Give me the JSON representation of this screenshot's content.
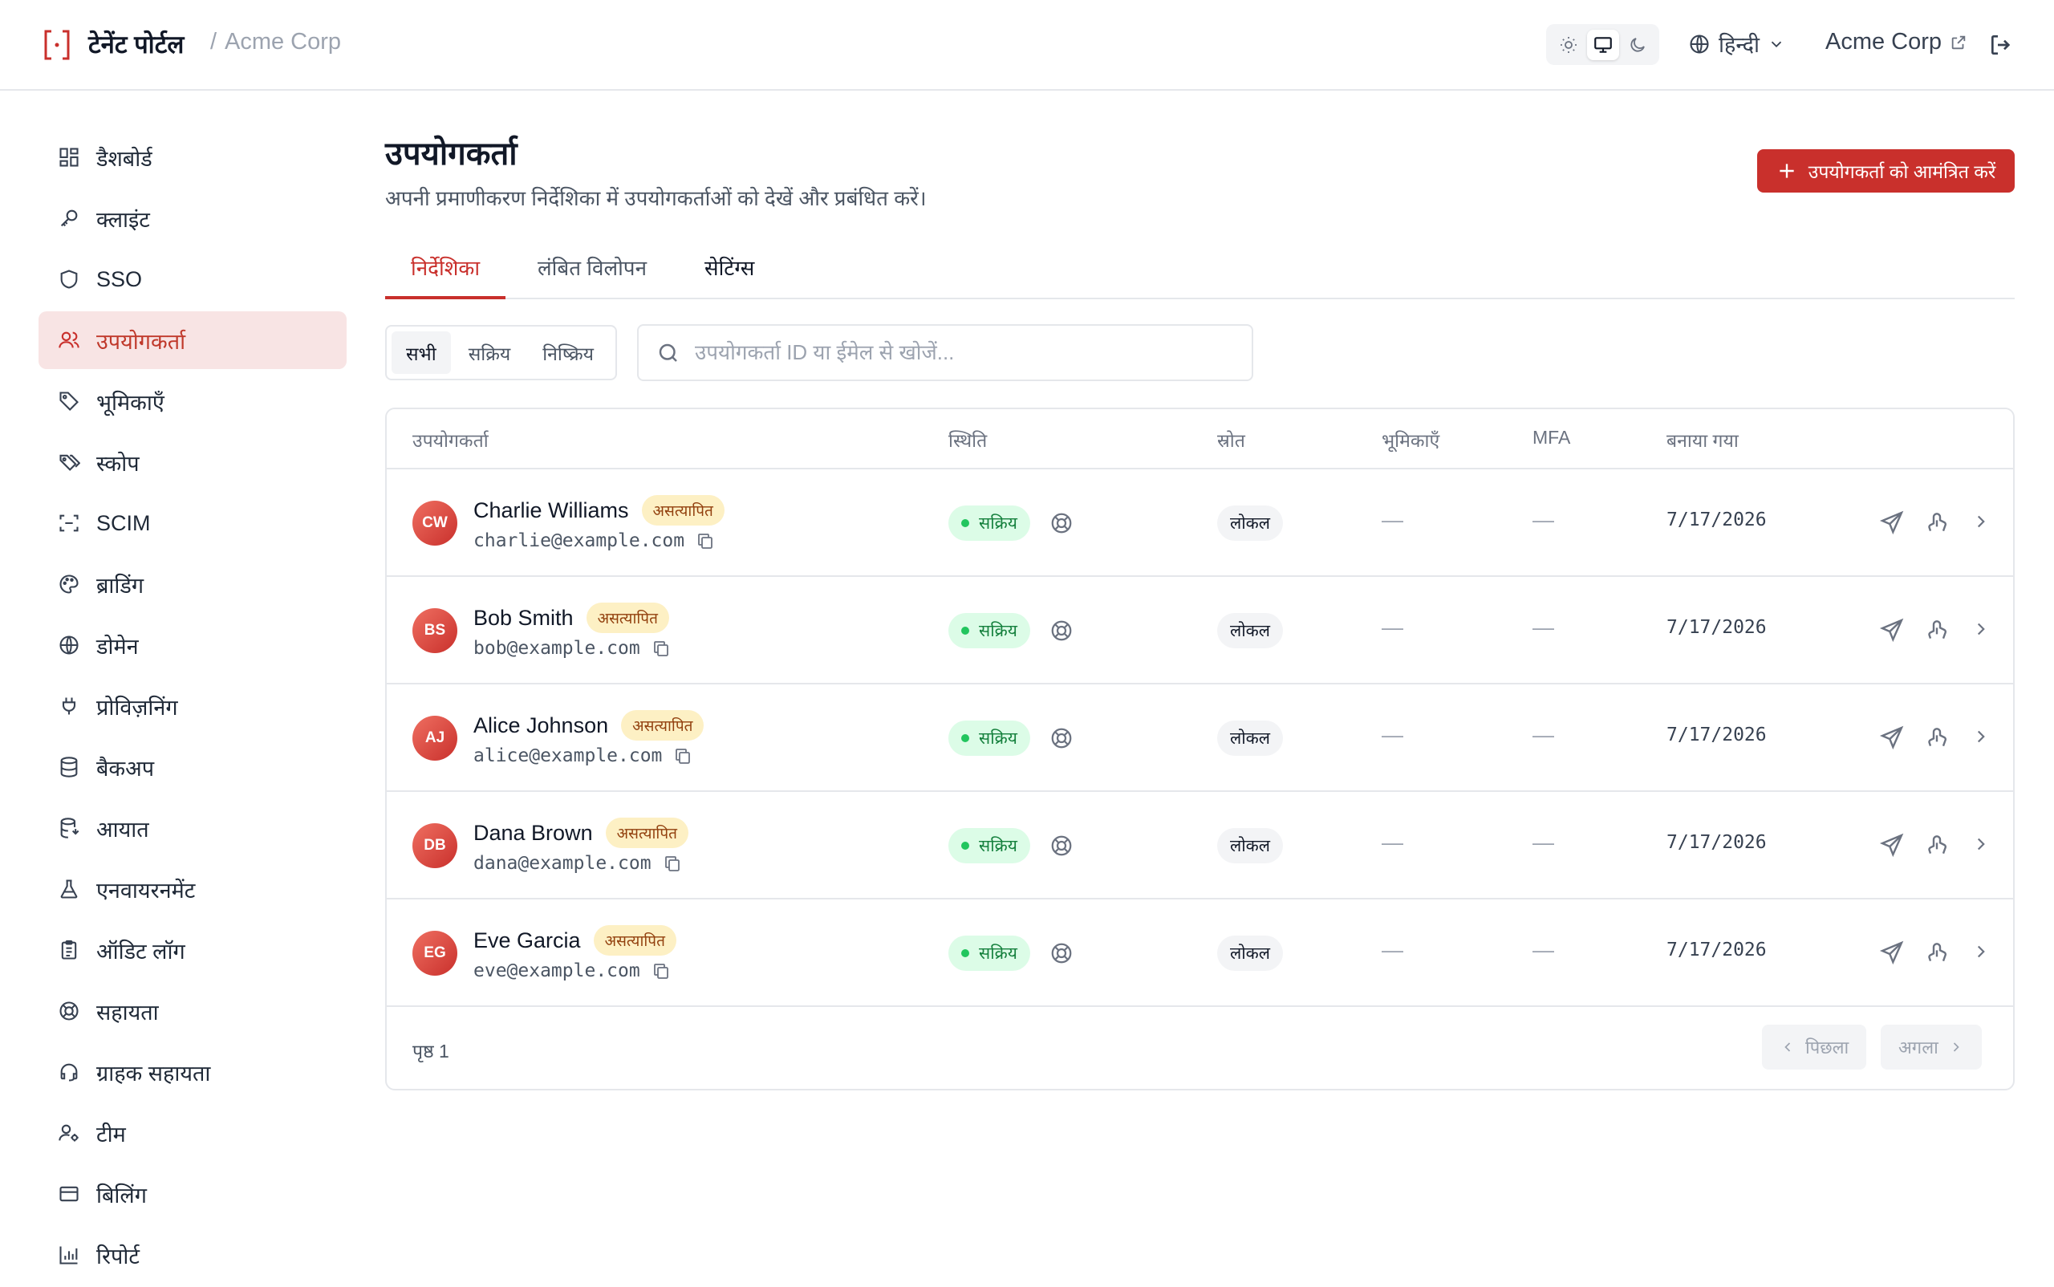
{
  "header": {
    "brand": "टेनेंट पोर्टल",
    "crumb_sep": "/",
    "crumb_org": "Acme Corp",
    "language": "हिन्दी",
    "org_link": "Acme Corp",
    "theme_options": [
      "sun-icon",
      "monitor-icon",
      "moon-icon"
    ],
    "theme_selected": "monitor-icon"
  },
  "sidebar": {
    "items": [
      {
        "label": "डैशबोर्ड",
        "icon": "dashboard-icon"
      },
      {
        "label": "क्लाइंट",
        "icon": "key-icon"
      },
      {
        "label": "SSO",
        "icon": "shield-icon"
      },
      {
        "label": "उपयोगकर्ता",
        "icon": "users-icon",
        "active": true
      },
      {
        "label": "भूमिकाएँ",
        "icon": "tag-icon"
      },
      {
        "label": "स्कोप",
        "icon": "tags-icon"
      },
      {
        "label": "SCIM",
        "icon": "scan-icon"
      },
      {
        "label": "ब्राडिंग",
        "icon": "palette-icon"
      },
      {
        "label": "डोमेन",
        "icon": "globe-icon"
      },
      {
        "label": "प्रोविज़निंग",
        "icon": "plug-icon"
      },
      {
        "label": "बैकअप",
        "icon": "database-icon"
      },
      {
        "label": "आयात",
        "icon": "database-import-icon"
      },
      {
        "label": "एनवायरनमेंट",
        "icon": "flask-icon"
      },
      {
        "label": "ऑडिट लॉग",
        "icon": "clipboard-icon"
      },
      {
        "label": "सहायता",
        "icon": "lifebuoy-icon"
      },
      {
        "label": "ग्राहक सहायता",
        "icon": "headset-icon"
      },
      {
        "label": "टीम",
        "icon": "user-gear-icon"
      },
      {
        "label": "बिलिंग",
        "icon": "credit-card-icon"
      },
      {
        "label": "रिपोर्ट",
        "icon": "bar-chart-icon"
      }
    ]
  },
  "main": {
    "title": "उपयोगकर्ता",
    "subtitle": "अपनी प्रमाणीकरण निर्देशिका में उपयोगकर्ताओं को देखें और प्रबंधित करें।",
    "invite_label": "उपयोगकर्ता को आमंत्रित करें",
    "tabs": [
      {
        "label": "निर्देशिका",
        "active": true
      },
      {
        "label": "लंबित विलोपन"
      },
      {
        "label": "सेटिंग्स"
      }
    ],
    "filters": [
      {
        "label": "सभी",
        "active": true
      },
      {
        "label": "सक्रिय"
      },
      {
        "label": "निष्क्रिय"
      }
    ],
    "search_placeholder": "उपयोगकर्ता ID या ईमेल से खोजें..."
  },
  "table": {
    "columns": [
      "उपयोगकर्ता",
      "स्थिति",
      "स्रोत",
      "भूमिकाएँ",
      "MFA",
      "बनाया गया"
    ],
    "rows": [
      {
        "initials": "CW",
        "name": "Charlie Williams",
        "badge": "असत्यापित",
        "email": "charlie@example.com",
        "status": "सक्रिय",
        "source": "लोकल",
        "roles": "—",
        "mfa": "—",
        "created": "7/17/2026"
      },
      {
        "initials": "BS",
        "name": "Bob Smith",
        "badge": "असत्यापित",
        "email": "bob@example.com",
        "status": "सक्रिय",
        "source": "लोकल",
        "roles": "—",
        "mfa": "—",
        "created": "7/17/2026"
      },
      {
        "initials": "AJ",
        "name": "Alice Johnson",
        "badge": "असत्यापित",
        "email": "alice@example.com",
        "status": "सक्रिय",
        "source": "लोकल",
        "roles": "—",
        "mfa": "—",
        "created": "7/17/2026"
      },
      {
        "initials": "DB",
        "name": "Dana Brown",
        "badge": "असत्यापित",
        "email": "dana@example.com",
        "status": "सक्रिय",
        "source": "लोकल",
        "roles": "—",
        "mfa": "—",
        "created": "7/17/2026"
      },
      {
        "initials": "EG",
        "name": "Eve Garcia",
        "badge": "असत्यापित",
        "email": "eve@example.com",
        "status": "सक्रिय",
        "source": "लोकल",
        "roles": "—",
        "mfa": "—",
        "created": "7/17/2026"
      }
    ],
    "page_label": "पृष्ठ 1",
    "prev_label": "पिछला",
    "next_label": "अगला"
  },
  "colors": {
    "accent": "#c9302c",
    "active_bg": "#f8e4e4",
    "status_bg": "#dcfce7",
    "status_fg": "#15803d",
    "badge_bg": "#fdf0c4"
  }
}
